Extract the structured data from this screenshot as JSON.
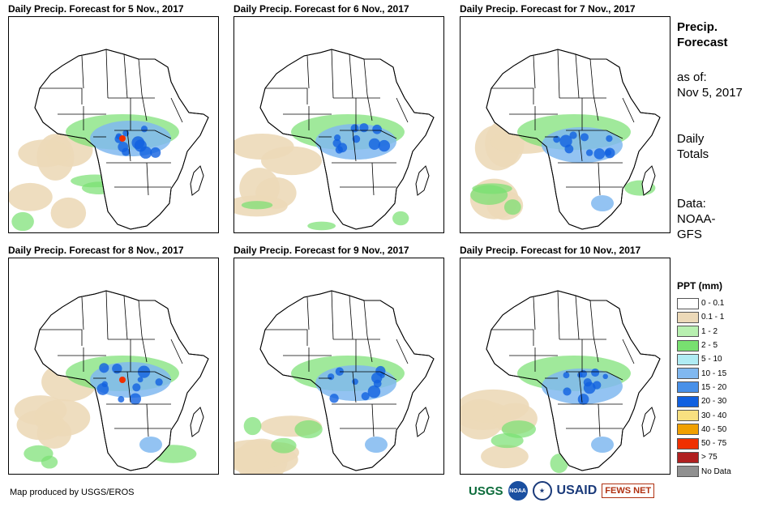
{
  "panels": [
    {
      "title": "Daily Precip. Forecast for 5 Nov., 2017"
    },
    {
      "title": "Daily Precip. Forecast for 6 Nov., 2017"
    },
    {
      "title": "Daily Precip. Forecast for 7 Nov., 2017"
    },
    {
      "title": "Daily Precip. Forecast for 8 Nov., 2017"
    },
    {
      "title": "Daily Precip. Forecast for 9 Nov., 2017"
    },
    {
      "title": "Daily Precip. Forecast for 10 Nov., 2017"
    }
  ],
  "sidebar": {
    "title_line1": "Precip.",
    "title_line2": "Forecast",
    "asof_line1": "as of:",
    "asof_line2": "Nov 5, 2017",
    "daily_line1": "Daily",
    "daily_line2": "Totals",
    "data_line1": "Data:",
    "data_line2": "NOAA-",
    "data_line3": "GFS"
  },
  "legend": {
    "title": "PPT (mm)",
    "items": [
      {
        "label": "0 - 0.1",
        "color": "#ffffff"
      },
      {
        "label": "0.1 - 1",
        "color": "#ecd9b8"
      },
      {
        "label": "1 - 2",
        "color": "#b8f0b0"
      },
      {
        "label": "2 - 5",
        "color": "#78e070"
      },
      {
        "label": "5 - 10",
        "color": "#b0ecf4"
      },
      {
        "label": "10 - 15",
        "color": "#80b8f0"
      },
      {
        "label": "15 - 20",
        "color": "#4890e8"
      },
      {
        "label": "20 - 30",
        "color": "#1060e0"
      },
      {
        "label": "30 - 40",
        "color": "#f8e080"
      },
      {
        "label": "40 - 50",
        "color": "#f0a000"
      },
      {
        "label": "50 - 75",
        "color": "#f03000"
      },
      {
        "label": "> 75",
        "color": "#b02020"
      },
      {
        "label": "No Data",
        "color": "#909090"
      }
    ]
  },
  "credit": "Map produced by USGS/EROS",
  "logos": {
    "usgs": "USGS",
    "noaa": "NOAA",
    "usaid": "USAID",
    "fewsnet": "FEWS NET"
  }
}
